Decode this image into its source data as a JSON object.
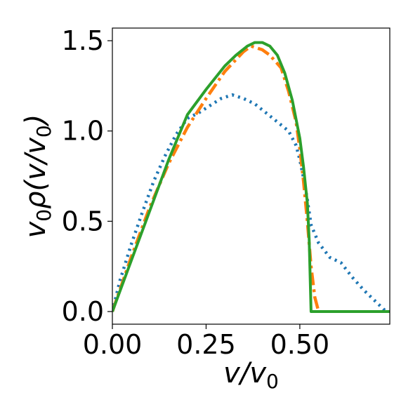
{
  "chart_data": {
    "type": "line",
    "title": "",
    "xlabel": "v/v0",
    "ylabel": "v0ρ(v/v0)",
    "xlim": [
      0.0,
      0.74
    ],
    "ylim": [
      -0.07,
      1.57
    ],
    "x_ticks": [
      0.0,
      0.25,
      0.5
    ],
    "x_tick_labels": [
      "0.00",
      "0.25",
      "0.50"
    ],
    "y_ticks": [
      0.0,
      0.5,
      1.0,
      1.5
    ],
    "y_tick_labels": [
      "0.0",
      "0.5",
      "1.0",
      "1.5"
    ],
    "grid": false,
    "legend": "none",
    "series": [
      {
        "color": "#1f77b4",
        "style": "dotted",
        "x": [
          0.0,
          0.02,
          0.05,
          0.08,
          0.11,
          0.14,
          0.17,
          0.2,
          0.23,
          0.26,
          0.29,
          0.32,
          0.35,
          0.38,
          0.41,
          0.44,
          0.47,
          0.49,
          0.5,
          0.51,
          0.52,
          0.53,
          0.55,
          0.58,
          0.61,
          0.64,
          0.67,
          0.7,
          0.73
        ],
        "y": [
          0.0,
          0.17,
          0.37,
          0.55,
          0.72,
          0.86,
          0.98,
          1.07,
          1.1,
          1.14,
          1.18,
          1.2,
          1.18,
          1.15,
          1.1,
          1.05,
          1.0,
          0.92,
          0.84,
          0.74,
          0.62,
          0.48,
          0.38,
          0.3,
          0.27,
          0.19,
          0.12,
          0.06,
          0.0
        ]
      },
      {
        "color": "#ff7f0e",
        "style": "dashdot",
        "x": [
          0.0,
          0.05,
          0.1,
          0.15,
          0.2,
          0.25,
          0.3,
          0.35,
          0.37,
          0.4,
          0.42,
          0.45,
          0.47,
          0.49,
          0.5,
          0.51,
          0.52,
          0.53,
          0.54,
          0.55
        ],
        "y": [
          0.0,
          0.3,
          0.58,
          0.82,
          1.02,
          1.18,
          1.33,
          1.44,
          1.47,
          1.45,
          1.42,
          1.35,
          1.22,
          1.05,
          0.9,
          0.72,
          0.5,
          0.25,
          0.08,
          0.0
        ]
      },
      {
        "color": "#2ca02c",
        "style": "solid",
        "x": [
          0.0,
          0.05,
          0.1,
          0.15,
          0.2,
          0.25,
          0.3,
          0.33,
          0.36,
          0.38,
          0.4,
          0.42,
          0.44,
          0.46,
          0.48,
          0.5,
          0.51,
          0.52,
          0.525,
          0.53,
          0.56,
          0.6,
          0.65,
          0.7,
          0.74
        ],
        "y": [
          0.0,
          0.28,
          0.56,
          0.84,
          1.09,
          1.23,
          1.36,
          1.42,
          1.47,
          1.49,
          1.49,
          1.47,
          1.42,
          1.32,
          1.17,
          0.96,
          0.8,
          0.6,
          0.4,
          0.0,
          0.0,
          0.0,
          0.0,
          0.0,
          0.0
        ]
      }
    ]
  }
}
